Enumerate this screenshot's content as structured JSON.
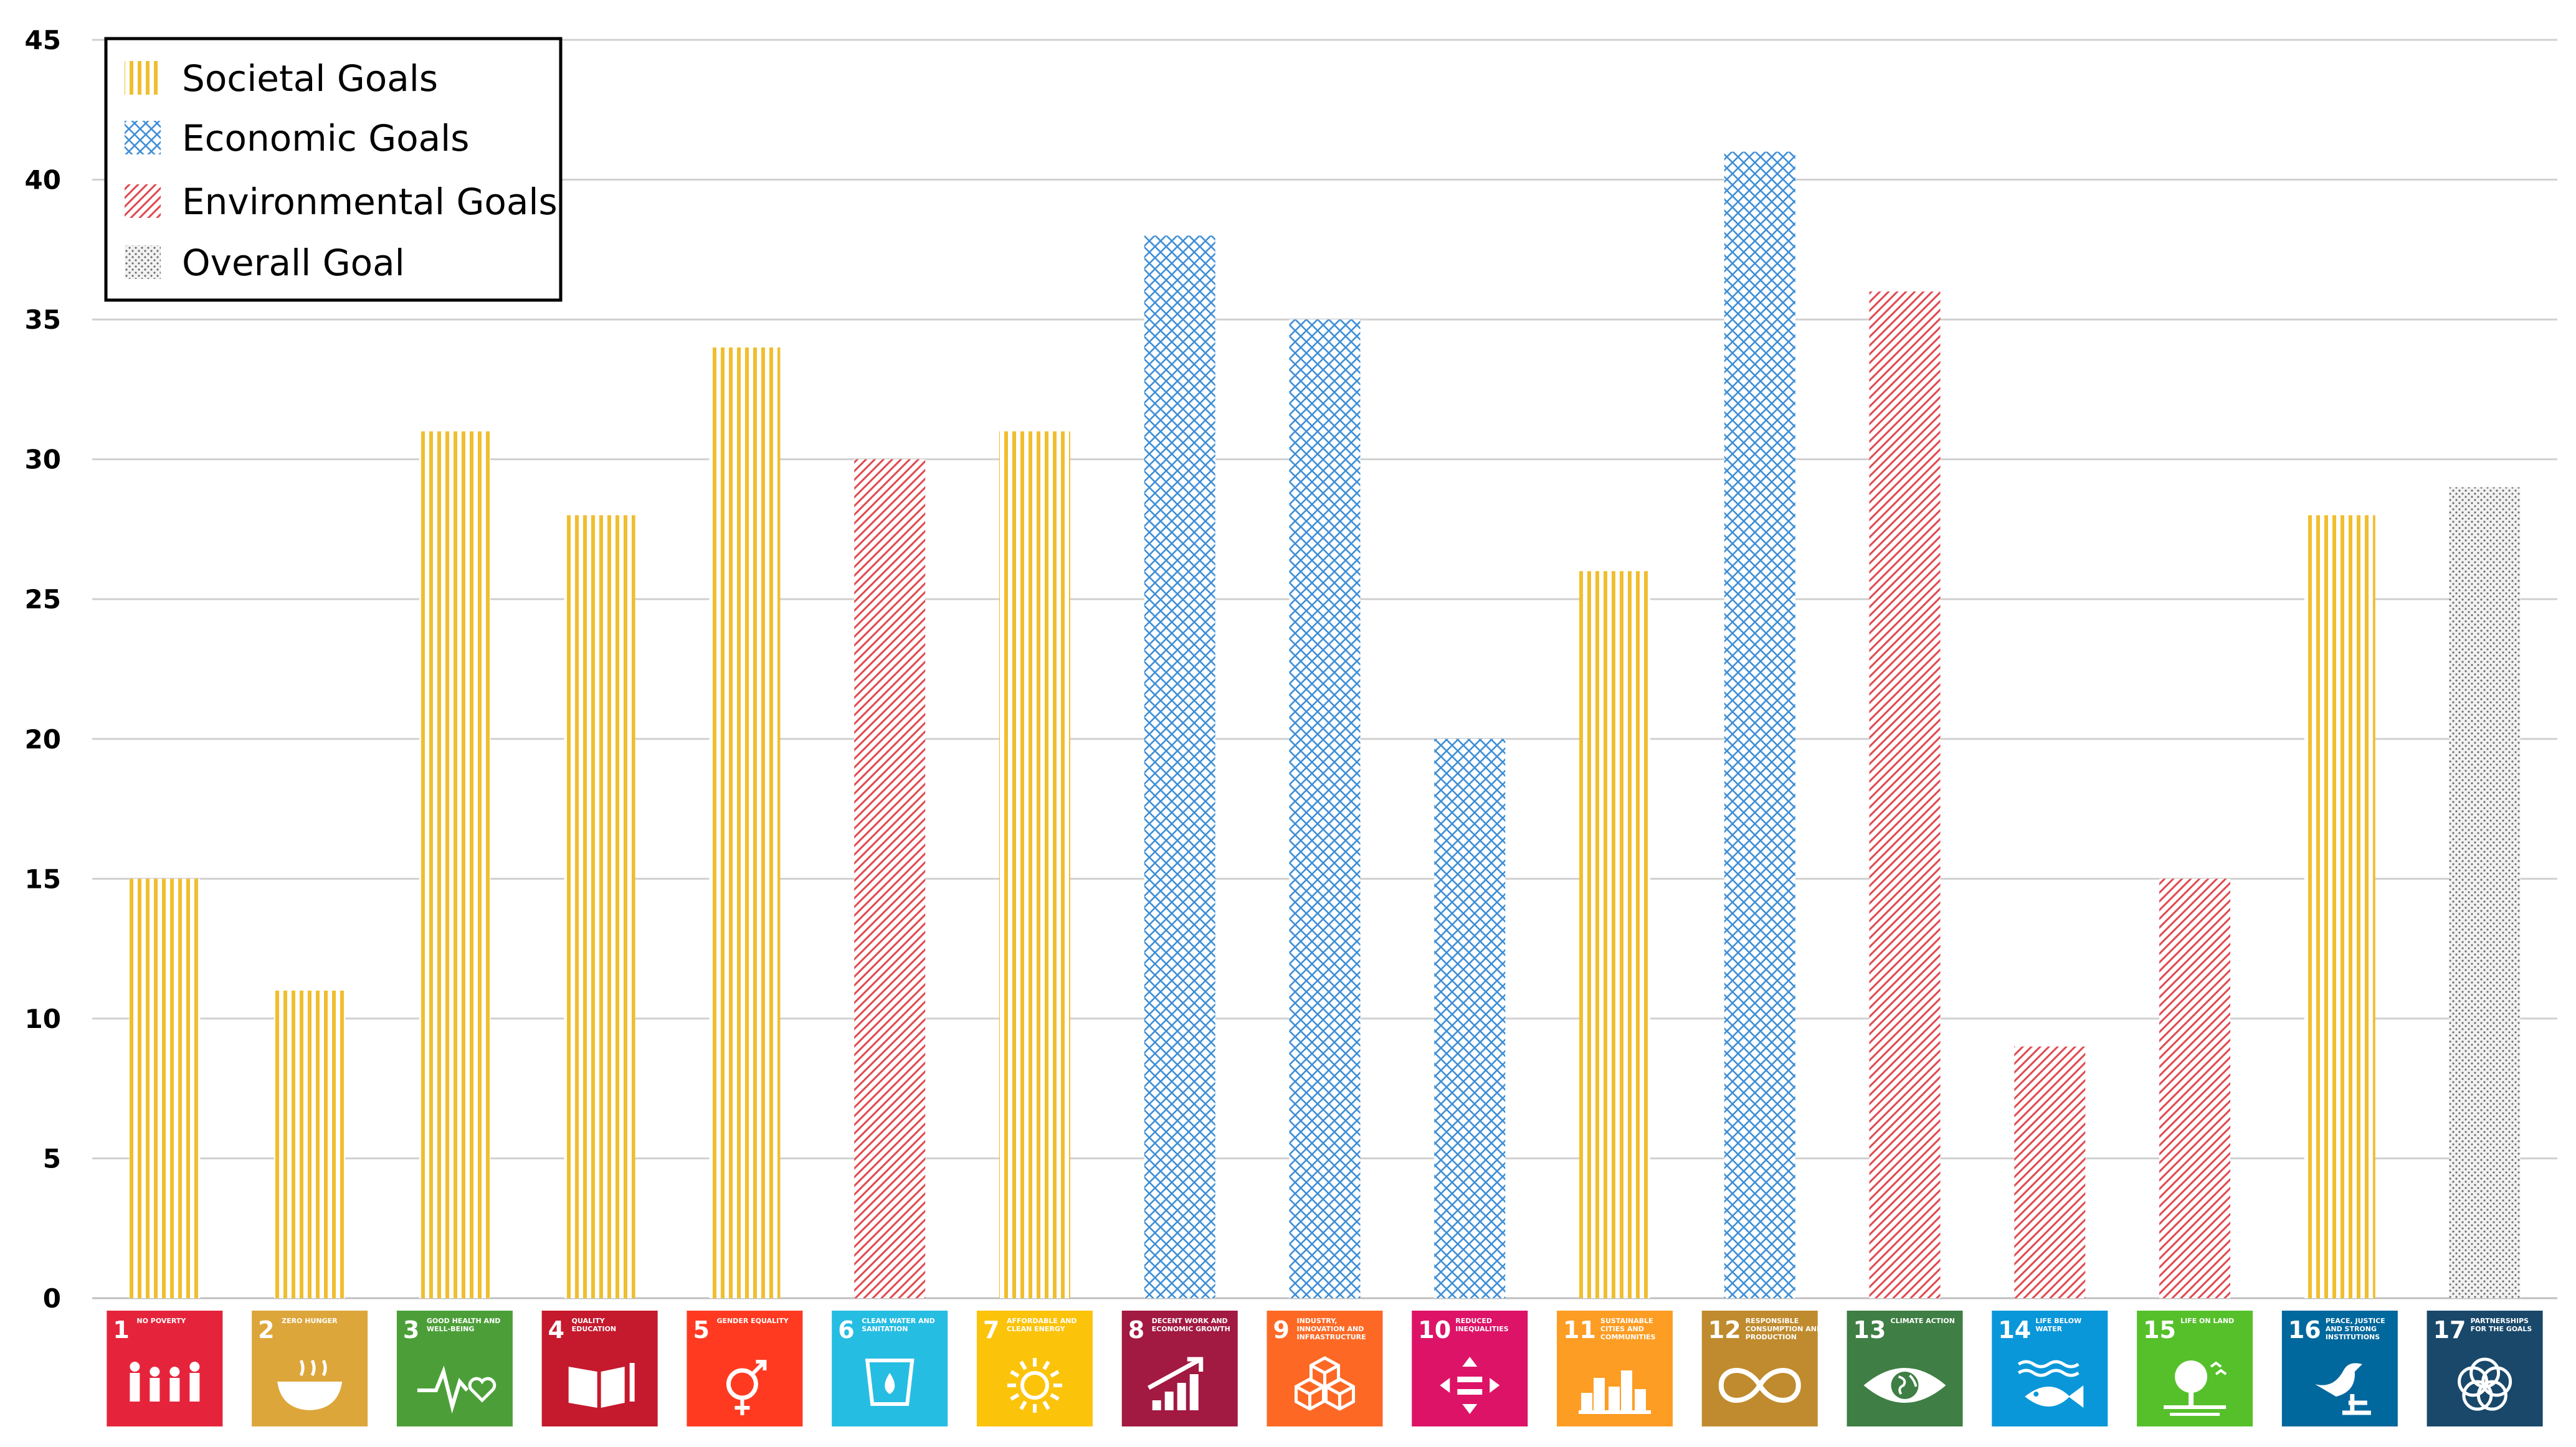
{
  "chart_data": {
    "type": "bar",
    "title": "",
    "xlabel": "",
    "ylabel": "",
    "ylim": [
      0,
      45
    ],
    "yticks": [
      0,
      5,
      10,
      15,
      20,
      25,
      30,
      35,
      40,
      45
    ],
    "grid": true,
    "legend_position": "top-left",
    "categories": [
      "1",
      "2",
      "3",
      "4",
      "5",
      "6",
      "7",
      "8",
      "9",
      "10",
      "11",
      "12",
      "13",
      "14",
      "15",
      "16",
      "17"
    ],
    "values": [
      15,
      11,
      31,
      28,
      34,
      30,
      31,
      38,
      35,
      20,
      26,
      41,
      36,
      9,
      15,
      28,
      29
    ],
    "bar_groups": [
      "societal",
      "societal",
      "societal",
      "societal",
      "societal",
      "environmental",
      "societal",
      "economic",
      "economic",
      "economic",
      "societal",
      "economic",
      "environmental",
      "environmental",
      "environmental",
      "societal",
      "overall"
    ],
    "legend": [
      {
        "key": "societal",
        "label": "Societal Goals",
        "color": "#F0BE2E",
        "pattern": "vertical-lines"
      },
      {
        "key": "economic",
        "label": "Economic Goals",
        "color": "#3F8FD6",
        "pattern": "crosshatch"
      },
      {
        "key": "environmental",
        "label": "Environmental Goals",
        "color": "#E0484F",
        "pattern": "diagonal-lines"
      },
      {
        "key": "overall",
        "label": "Overall Goal",
        "color": "#6E6E6E",
        "pattern": "dots"
      }
    ],
    "sdg_icons": [
      {
        "number": "1",
        "title": "NO POVERTY",
        "color": "#E5243B",
        "icon": "family-icon"
      },
      {
        "number": "2",
        "title": "ZERO HUNGER",
        "color": "#DDA63A",
        "icon": "bowl-icon"
      },
      {
        "number": "3",
        "title": "GOOD HEALTH AND WELL-BEING",
        "color": "#4C9F38",
        "icon": "heartbeat-icon"
      },
      {
        "number": "4",
        "title": "QUALITY EDUCATION",
        "color": "#C5192D",
        "icon": "book-icon"
      },
      {
        "number": "5",
        "title": "GENDER EQUALITY",
        "color": "#FF3A21",
        "icon": "gender-icon"
      },
      {
        "number": "6",
        "title": "CLEAN WATER AND SANITATION",
        "color": "#26BDE2",
        "icon": "water-drop-icon"
      },
      {
        "number": "7",
        "title": "AFFORDABLE AND CLEAN ENERGY",
        "color": "#FCC30B",
        "icon": "sun-icon"
      },
      {
        "number": "8",
        "title": "DECENT WORK AND ECONOMIC GROWTH",
        "color": "#A21942",
        "icon": "growth-chart-icon"
      },
      {
        "number": "9",
        "title": "INDUSTRY, INNOVATION AND INFRASTRUCTURE",
        "color": "#FD6925",
        "icon": "cubes-icon"
      },
      {
        "number": "10",
        "title": "REDUCED INEQUALITIES",
        "color": "#DD1367",
        "icon": "equality-icon"
      },
      {
        "number": "11",
        "title": "SUSTAINABLE CITIES AND COMMUNITIES",
        "color": "#FD9D24",
        "icon": "city-icon"
      },
      {
        "number": "12",
        "title": "RESPONSIBLE CONSUMPTION AND PRODUCTION",
        "color": "#BF8B2E",
        "icon": "infinity-icon"
      },
      {
        "number": "13",
        "title": "CLIMATE ACTION",
        "color": "#3F7E44",
        "icon": "earth-eye-icon"
      },
      {
        "number": "14",
        "title": "LIFE BELOW WATER",
        "color": "#0A97D9",
        "icon": "fish-icon"
      },
      {
        "number": "15",
        "title": "LIFE ON LAND",
        "color": "#56C02B",
        "icon": "tree-icon"
      },
      {
        "number": "16",
        "title": "PEACE, JUSTICE AND STRONG INSTITUTIONS",
        "color": "#00689D",
        "icon": "dove-icon"
      },
      {
        "number": "17",
        "title": "PARTNERSHIPS FOR THE GOALS",
        "color": "#19486A",
        "icon": "rings-icon"
      }
    ]
  }
}
